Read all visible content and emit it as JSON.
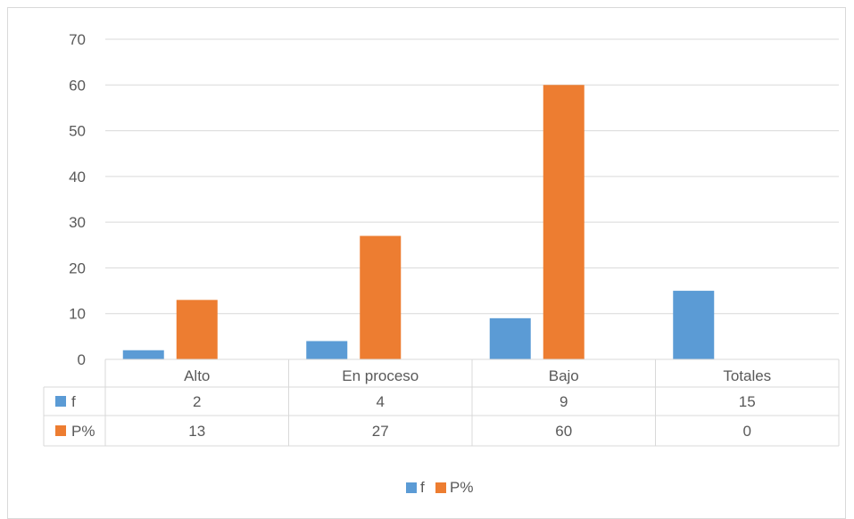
{
  "chart_data": {
    "type": "bar",
    "categories": [
      "Alto",
      "En proceso",
      "Bajo",
      "Totales"
    ],
    "series": [
      {
        "name": "f",
        "values": [
          2,
          4,
          9,
          15
        ],
        "color": "#5b9bd5"
      },
      {
        "name": "P%",
        "values": [
          13,
          27,
          60,
          0
        ],
        "color": "#ed7d31"
      }
    ],
    "ylim": [
      0,
      70
    ],
    "yticks": [
      0,
      10,
      20,
      30,
      40,
      50,
      60,
      70
    ],
    "grid": true,
    "legend": "bottom",
    "data_table": true,
    "title": "",
    "xlabel": "",
    "ylabel": ""
  }
}
